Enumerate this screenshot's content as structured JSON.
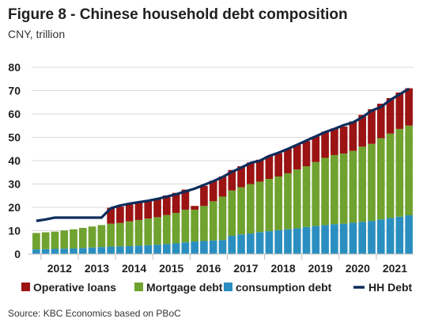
{
  "chart_data": {
    "type": "bar",
    "stacked": true,
    "title": "Figure 8 - Chinese household debt composition",
    "subtitle": "CNY, trillion",
    "source": "Source: KBC Economics based on PBoC",
    "ylim": [
      0,
      80
    ],
    "yticks": [
      0,
      10,
      20,
      30,
      40,
      50,
      60,
      70,
      80
    ],
    "grid": true,
    "legend_position": "bottom",
    "x_year_labels": [
      "2012",
      "2013",
      "2014",
      "2015",
      "2016",
      "2017",
      "2018",
      "2019",
      "2020",
      "2021"
    ],
    "categories": [
      "2011Q4",
      "2012Q1",
      "2012Q2",
      "2012Q3",
      "2012Q4",
      "2013Q1",
      "2013Q2",
      "2013Q3",
      "2013Q4",
      "2014Q1",
      "2014Q2",
      "2014Q3",
      "2014Q4",
      "2015Q1",
      "2015Q2",
      "2015Q3",
      "2015Q4",
      "2016Q1",
      "2016Q2",
      "2016Q3",
      "2016Q4",
      "2017Q1",
      "2017Q2",
      "2017Q3",
      "2017Q4",
      "2018Q1",
      "2018Q2",
      "2018Q3",
      "2018Q4",
      "2019Q1",
      "2019Q2",
      "2019Q3",
      "2019Q4",
      "2020Q1",
      "2020Q2",
      "2020Q3",
      "2020Q4",
      "2021Q1",
      "2021Q2",
      "2021Q3",
      "2021Q4"
    ],
    "series": [
      {
        "name": "consumption debt",
        "color": "#2a8fc0",
        "values": [
          2.0,
          2.1,
          2.2,
          2.3,
          2.4,
          2.6,
          2.8,
          3.0,
          3.2,
          3.3,
          3.4,
          3.6,
          3.8,
          4.0,
          4.3,
          4.6,
          5.0,
          5.4,
          5.6,
          5.8,
          6.0,
          7.8,
          8.4,
          8.8,
          9.4,
          9.8,
          10.2,
          10.6,
          11.0,
          11.6,
          12.0,
          12.4,
          12.8,
          13.0,
          13.4,
          13.8,
          14.2,
          14.8,
          15.4,
          16.0,
          16.6
        ]
      },
      {
        "name": "Mortgage debt",
        "color": "#6fa22e",
        "values": [
          7.0,
          7.2,
          7.4,
          7.8,
          8.2,
          8.6,
          9.0,
          9.4,
          9.8,
          10.0,
          10.6,
          11.0,
          11.4,
          11.8,
          12.4,
          13.0,
          14.0,
          13.6,
          15.0,
          16.8,
          18.6,
          19.4,
          20.2,
          21.2,
          21.6,
          22.4,
          23.0,
          24.0,
          25.2,
          26.0,
          27.4,
          28.8,
          29.6,
          30.0,
          30.8,
          32.2,
          33.0,
          34.8,
          36.2,
          37.6,
          38.4
        ]
      },
      {
        "name": "Operative loans",
        "color": "#9b1313",
        "values": [
          0,
          0,
          0,
          0,
          0,
          0,
          0,
          0,
          6.8,
          7.0,
          7.3,
          7.4,
          7.6,
          8.0,
          8.4,
          8.6,
          8.6,
          1.6,
          8.6,
          8.8,
          8.6,
          8.8,
          9.0,
          9.2,
          9.4,
          9.8,
          10.0,
          10.4,
          10.6,
          10.8,
          11.0,
          11.2,
          11.4,
          11.6,
          12.6,
          13.6,
          14.8,
          14.8,
          15.2,
          15.6,
          16.0
        ]
      }
    ],
    "line_series": {
      "name": "HH Debt",
      "color": "#0b2d5b",
      "values": [
        14.2,
        14.8,
        15.6,
        15.6,
        15.6,
        15.6,
        15.6,
        15.6,
        19.6,
        20.8,
        21.6,
        22.2,
        22.8,
        23.6,
        24.6,
        25.6,
        26.8,
        28.0,
        29.6,
        31.2,
        33.0,
        35.2,
        37.0,
        39.0,
        40.0,
        42.0,
        43.4,
        45.0,
        46.8,
        48.6,
        50.4,
        52.2,
        53.6,
        55.2,
        56.4,
        58.6,
        61.4,
        63.0,
        66.0,
        68.4,
        70.8
      ]
    },
    "legend": [
      {
        "label": "Operative loans",
        "marker": "square",
        "color": "#9b1313"
      },
      {
        "label": "Mortgage debt",
        "marker": "square",
        "color": "#6fa22e"
      },
      {
        "label": "consumption debt",
        "marker": "square",
        "color": "#2a8fc0"
      },
      {
        "label": "HH Debt",
        "marker": "line",
        "color": "#0b2d5b"
      }
    ]
  }
}
